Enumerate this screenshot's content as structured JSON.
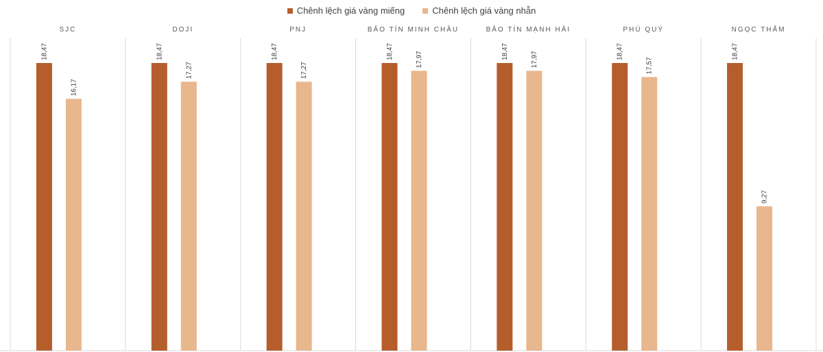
{
  "chart_data": {
    "type": "bar",
    "categories": [
      "SJC",
      "DOJI",
      "PNJ",
      "BẢO TÍN MINH CHÂU",
      "BẢO TÍN MẠNH HẢI",
      "PHÚ QUÝ",
      "NGỌC THẨM"
    ],
    "series": [
      {
        "name": "Chênh lệch giá  vàng miếng",
        "color": "#b65d2c",
        "values": [
          18.47,
          18.47,
          18.47,
          18.47,
          18.47,
          18.47,
          18.47
        ],
        "labels": [
          "18,47",
          "18,47",
          "18,47",
          "18,47",
          "18,47",
          "18,47",
          "18,47"
        ]
      },
      {
        "name": "Chênh lệch giá vàng nhẫn",
        "color": "#e9b78d",
        "values": [
          16.17,
          17.27,
          17.27,
          17.97,
          17.97,
          17.57,
          9.27
        ],
        "labels": [
          "16,17",
          "17,27",
          "17,27",
          "17,97",
          "17,97",
          "17,57",
          "9,27"
        ]
      }
    ],
    "ylim": [
      0,
      20
    ],
    "legend_position": "top-center",
    "grid": false
  }
}
